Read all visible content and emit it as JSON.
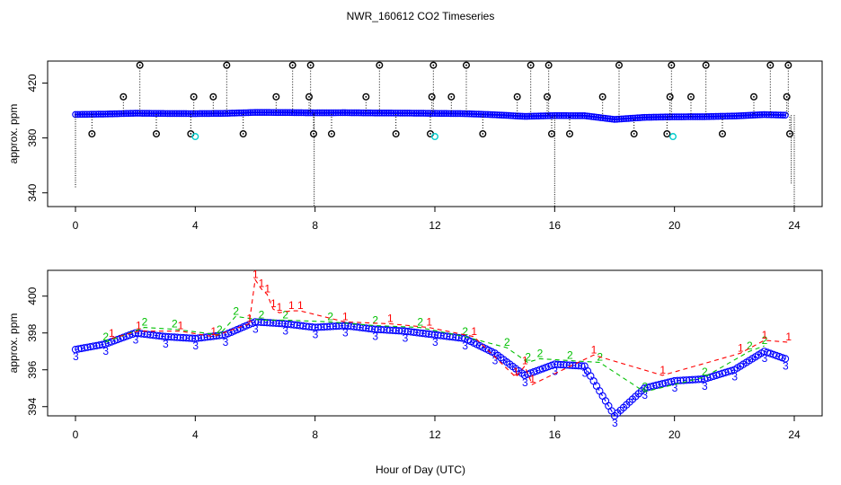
{
  "figure": {
    "title": "NWR_160612  CO2 Timeseries",
    "xlabel": "Hour of Day (UTC)"
  },
  "colors": {
    "axis": "#000000",
    "flag_marker": "#000000",
    "flag_line": "#000000",
    "main_series": "#0000ff",
    "overlay_green": "#00c000",
    "overlay_red": "#ff0000",
    "cyan_marker": "#00cccc"
  },
  "chart_data": [
    {
      "name": "top-panel",
      "type": "scatter",
      "ylabel": "approx. ppm",
      "xlim": [
        0,
        24
      ],
      "ylim": [
        330,
        436
      ],
      "x_ticks": [
        0,
        4,
        8,
        12,
        16,
        20,
        24
      ],
      "y_ticks": [
        340,
        380,
        420
      ],
      "grid": false,
      "baseline_series": {
        "name": "continuous",
        "x": [
          0,
          1,
          2,
          3,
          4,
          5,
          6,
          7,
          8,
          9,
          10,
          11,
          12,
          13,
          14,
          15,
          16,
          17,
          18,
          19,
          20,
          21,
          22,
          23,
          23.7
        ],
        "y": [
          397.1,
          397.4,
          398.0,
          397.8,
          397.7,
          397.9,
          398.6,
          398.5,
          398.3,
          398.4,
          398.2,
          398.1,
          397.9,
          397.7,
          396.9,
          395.7,
          396.3,
          396.2,
          393.5,
          395.0,
          395.4,
          395.5,
          396.0,
          397.0,
          396.6
        ]
      },
      "flagged_high": {
        "x": [
          1.6,
          2.15,
          3.95,
          4.6,
          5.05,
          6.7,
          7.25,
          7.8,
          7.85,
          9.7,
          10.15,
          11.9,
          11.95,
          12.55,
          13.05,
          14.75,
          15.2,
          15.75,
          15.8,
          17.6,
          18.15,
          19.85,
          19.9,
          20.55,
          21.05,
          22.65,
          23.2,
          23.75,
          23.8
        ],
        "y": [
          410,
          433,
          410,
          410,
          433,
          410,
          433,
          410,
          433,
          410,
          433,
          410,
          433,
          410,
          433,
          410,
          433,
          410,
          433,
          410,
          433,
          410,
          433,
          410,
          433,
          410,
          433,
          410,
          433
        ]
      },
      "flagged_low": {
        "x": [
          0.55,
          2.7,
          3.85,
          5.6,
          7.95,
          8.55,
          10.7,
          11.85,
          13.6,
          15.9,
          16.5,
          18.65,
          19.75,
          21.6,
          23.85
        ],
        "y": [
          383,
          383,
          383,
          383,
          383,
          383,
          383,
          383,
          383,
          383,
          383,
          383,
          383,
          383,
          383
        ]
      },
      "cyan_points": {
        "x": [
          4.0,
          12.0,
          19.95
        ],
        "y": [
          381,
          381,
          381
        ]
      },
      "drop_lines": {
        "x": [
          0.0,
          7.97,
          16.0,
          23.9,
          24.0
        ],
        "y_low": [
          344,
          330,
          330,
          346,
          330
        ]
      }
    },
    {
      "name": "bottom-panel",
      "type": "line",
      "ylabel": "approx. ppm",
      "xlim": [
        0,
        24
      ],
      "ylim": [
        393.5,
        401.4
      ],
      "x_ticks": [
        0,
        4,
        8,
        12,
        16,
        20,
        24
      ],
      "y_ticks": [
        394,
        396,
        398,
        400
      ],
      "grid": false,
      "series": [
        {
          "name": "3",
          "marker_label": "3",
          "x": [
            0,
            1,
            2,
            3,
            4,
            5,
            6,
            7,
            8,
            9,
            10,
            11,
            12,
            13,
            14,
            15,
            16,
            17,
            18,
            19,
            20,
            21,
            22,
            23,
            23.7
          ],
          "y": [
            397.1,
            397.4,
            398.0,
            397.8,
            397.7,
            397.9,
            398.6,
            398.5,
            398.3,
            398.4,
            398.2,
            398.1,
            397.9,
            397.7,
            396.9,
            395.7,
            396.3,
            396.2,
            393.5,
            395.0,
            395.4,
            395.5,
            396.0,
            397.0,
            396.6
          ]
        },
        {
          "name": "2",
          "marker_label": "2",
          "x": [
            1,
            2.3,
            3.3,
            4.8,
            5.35,
            6.2,
            7.0,
            8.5,
            10.0,
            11.5,
            13.0,
            14.4,
            15.1,
            15.5,
            16.5,
            17.5,
            19.0,
            21.0,
            22.5,
            23.0
          ],
          "y": [
            397.5,
            398.3,
            398.2,
            397.9,
            398.9,
            398.7,
            398.7,
            398.6,
            398.4,
            398.3,
            397.8,
            397.2,
            396.4,
            396.6,
            396.5,
            396.4,
            394.8,
            395.6,
            397.0,
            397.3
          ]
        },
        {
          "name": "1",
          "marker_label": "1",
          "x": [
            1.2,
            2.1,
            3.5,
            4.6,
            5.8,
            6.0,
            6.2,
            6.4,
            6.6,
            6.8,
            7.2,
            7.5,
            9.0,
            10.5,
            11.8,
            13.3,
            14.7,
            15.0,
            15.25,
            17.3,
            19.6,
            22.2,
            23.0,
            23.8
          ],
          "y": [
            397.7,
            398.1,
            398.1,
            397.8,
            398.5,
            400.9,
            400.4,
            400.1,
            399.3,
            399.1,
            399.2,
            399.2,
            398.6,
            398.5,
            398.3,
            397.8,
            395.6,
            396.2,
            395.2,
            396.8,
            395.7,
            396.9,
            397.6,
            397.5
          ]
        }
      ]
    }
  ]
}
